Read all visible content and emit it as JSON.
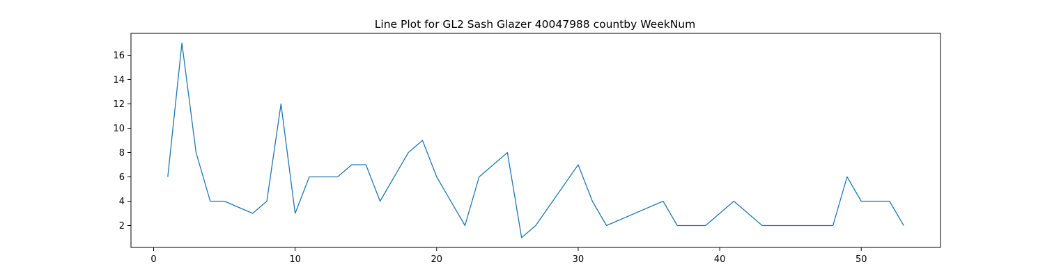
{
  "chart_data": {
    "type": "line",
    "title": "Line Plot for GL2 Sash Glazer 40047988 countby WeekNum",
    "xlabel": "",
    "ylabel": "",
    "xlim": [
      -1.6,
      55.6
    ],
    "ylim": [
      0.2,
      17.8
    ],
    "xticks": [
      0,
      10,
      20,
      30,
      40,
      50
    ],
    "yticks": [
      2,
      4,
      6,
      8,
      10,
      12,
      14,
      16
    ],
    "grid": false,
    "line_color": "#1f77b4",
    "series": [
      {
        "x": [
          1,
          2,
          3,
          4,
          5,
          7,
          8,
          9,
          10,
          11,
          13,
          14,
          15,
          16,
          18,
          19,
          20,
          22,
          23,
          25,
          26,
          27,
          30,
          31,
          32,
          36,
          37,
          39,
          41,
          43,
          48,
          49,
          50,
          52,
          53
        ],
        "values": [
          6,
          17,
          8,
          4,
          4,
          3,
          4,
          12,
          3,
          6,
          6,
          7,
          7,
          4,
          8,
          9,
          6,
          2,
          6,
          8,
          1,
          2,
          7,
          4,
          2,
          4,
          2,
          2,
          4,
          2,
          2,
          6,
          4,
          4,
          2
        ]
      }
    ]
  }
}
